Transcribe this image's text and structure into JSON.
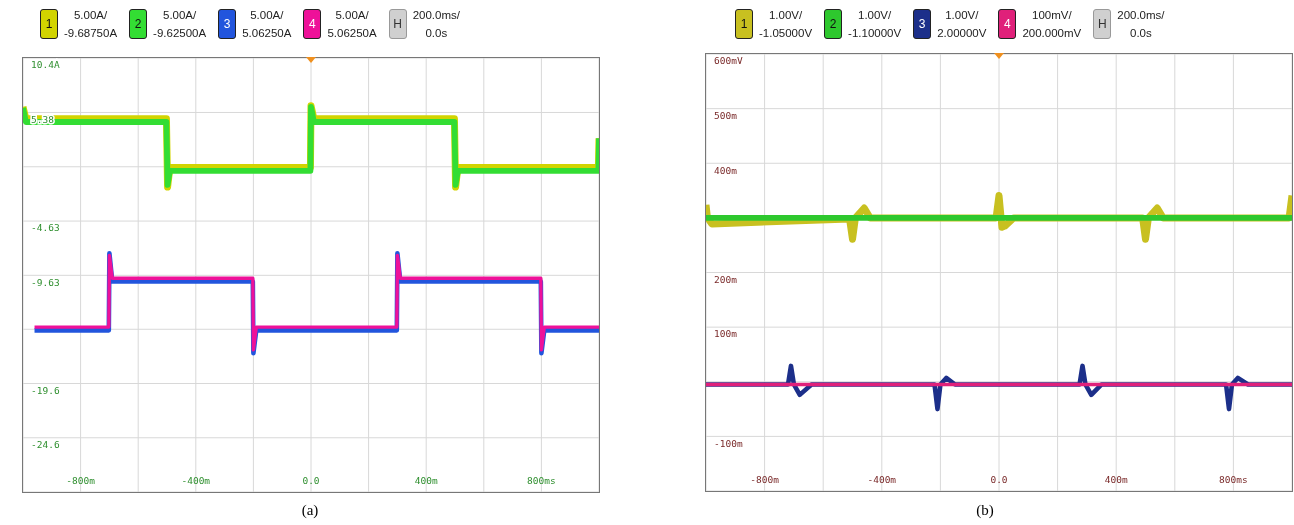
{
  "chart_data": [
    {
      "type": "line",
      "legend": "top",
      "grid": true,
      "marker": "none",
      "xlim": [
        -1000,
        1000
      ],
      "ylim": [
        -29.6,
        10.4
      ],
      "xticks": [
        {
          "value": -800,
          "label": "-800m"
        },
        {
          "value": -600,
          "label": null
        },
        {
          "value": -400,
          "label": "-400m"
        },
        {
          "value": -200,
          "label": null
        },
        {
          "value": 0,
          "label": "0.0"
        },
        {
          "value": 200,
          "label": null
        },
        {
          "value": 400,
          "label": "400m"
        },
        {
          "value": 600,
          "label": null
        },
        {
          "value": 800,
          "label": "800ms"
        }
      ],
      "yticks": [
        {
          "value": 10.4,
          "label": "10.4A"
        },
        5.38,
        {
          "value": 0.375,
          "label": null
        },
        -4.63,
        -9.63,
        {
          "value": -14.6,
          "label": null
        },
        -19.6,
        -24.6
      ],
      "series": [
        {
          "name": "1",
          "color": "#d2d400",
          "x": [
            -1000,
            -990,
            -502,
            -498,
            -490,
            -2,
            0,
            10,
            498,
            502,
            510,
            998,
            1000
          ],
          "values": [
            5.9,
            4.8,
            4.8,
            -1.5,
            0.3,
            0.3,
            6.0,
            4.8,
            4.8,
            -1.5,
            0.3,
            0.3,
            3.0
          ]
        },
        {
          "name": "2",
          "color": "#33dd33",
          "x": [
            -1000,
            -990,
            -502,
            -498,
            -490,
            -2,
            0,
            10,
            498,
            502,
            510,
            998,
            1000
          ],
          "values": [
            5.8,
            4.5,
            4.5,
            -1.3,
            0.0,
            0.0,
            5.9,
            4.5,
            4.5,
            -1.3,
            0.0,
            0.0,
            3.0
          ]
        },
        {
          "name": "3",
          "color": "#2255dd",
          "x": [
            -960,
            -702,
            -700,
            -690,
            -202,
            -200,
            -190,
            298,
            300,
            310,
            798,
            800,
            810,
            1000
          ],
          "values": [
            -14.7,
            -14.7,
            -7.6,
            -10.2,
            -10.2,
            -16.8,
            -14.7,
            -14.7,
            -7.6,
            -10.2,
            -10.2,
            -16.8,
            -14.7,
            -14.7
          ]
        },
        {
          "name": "4",
          "color": "#ee1199",
          "x": [
            -960,
            -702,
            -700,
            -690,
            -202,
            -200,
            -190,
            298,
            300,
            310,
            798,
            800,
            810,
            1000
          ],
          "values": [
            -14.4,
            -14.4,
            -7.8,
            -9.9,
            -9.9,
            -16.5,
            -14.4,
            -14.4,
            -7.8,
            -9.9,
            -9.9,
            -16.5,
            -14.4,
            -14.4
          ]
        }
      ],
      "annotations": [
        "5.00A/",
        "-9.68750A",
        "5.00A/",
        "-9.62500A",
        "5.00A/",
        "5.06250A",
        "5.00A/",
        "5.06250A",
        "H",
        "200.0ms/",
        "0.0s",
        "(a)"
      ]
    },
    {
      "type": "line",
      "legend": "top",
      "grid": true,
      "marker": "none",
      "xlim": [
        -1000,
        1000
      ],
      "ylim": [
        -200,
        600
      ],
      "xticks": [
        {
          "value": -800,
          "label": "-800m"
        },
        {
          "value": -600,
          "label": null
        },
        {
          "value": -400,
          "label": "-400m"
        },
        {
          "value": -200,
          "label": null
        },
        {
          "value": 0,
          "label": "0.0"
        },
        {
          "value": 200,
          "label": null
        },
        {
          "value": 400,
          "label": "400m"
        },
        {
          "value": 600,
          "label": null
        },
        {
          "value": 800,
          "label": "800ms"
        }
      ],
      "yticks": [
        {
          "value": 600,
          "label": "600mV"
        },
        {
          "value": 500,
          "label": "500m"
        },
        {
          "value": 400,
          "label": "400m"
        },
        {
          "value": 300,
          "label": null
        },
        {
          "value": 200,
          "label": "200m"
        },
        {
          "value": 100,
          "label": "100m"
        },
        {
          "value": 0,
          "label": null
        },
        {
          "value": -100,
          "label": "-100m"
        }
      ],
      "series": [
        {
          "name": "1",
          "color": "#c8c020",
          "x": [
            -1000,
            -995,
            -980,
            -510,
            -500,
            -490,
            -460,
            -440,
            -10,
            0,
            10,
            20,
            50,
            490,
            500,
            510,
            540,
            560,
            990,
            1000
          ],
          "values": [
            324,
            300,
            289,
            298,
            261,
            300,
            318,
            300,
            300,
            341,
            283,
            285,
            300,
            300,
            261,
            300,
            318,
            300,
            300,
            341
          ]
        },
        {
          "name": "2",
          "color": "#2ec82e",
          "x": [
            -1000,
            1000
          ],
          "values": [
            300,
            300
          ]
        },
        {
          "name": "3",
          "color": "#1c2f8a",
          "x": [
            -1000,
            -720,
            -710,
            -700,
            -680,
            -640,
            -220,
            -210,
            -200,
            -180,
            -150,
            275,
            285,
            295,
            315,
            350,
            775,
            785,
            795,
            815,
            850,
            1000
          ],
          "values": [
            -5,
            -5,
            29,
            -5,
            -24,
            -5,
            -5,
            -50,
            -5,
            7,
            -5,
            -5,
            29,
            -5,
            -24,
            -5,
            -5,
            -50,
            -5,
            7,
            -5,
            -5
          ]
        },
        {
          "name": "4",
          "color": "#e0207a",
          "x": [
            -1000,
            1000
          ],
          "values": [
            -5,
            -5
          ]
        }
      ],
      "annotations": [
        "1.00V/",
        "-1.05000V",
        "1.00V/",
        "-1.10000V",
        "1.00V/",
        "2.00000V",
        "100mV/",
        "200.000mV",
        "H",
        "200.0ms/",
        "0.0s",
        "(b)"
      ]
    }
  ]
}
